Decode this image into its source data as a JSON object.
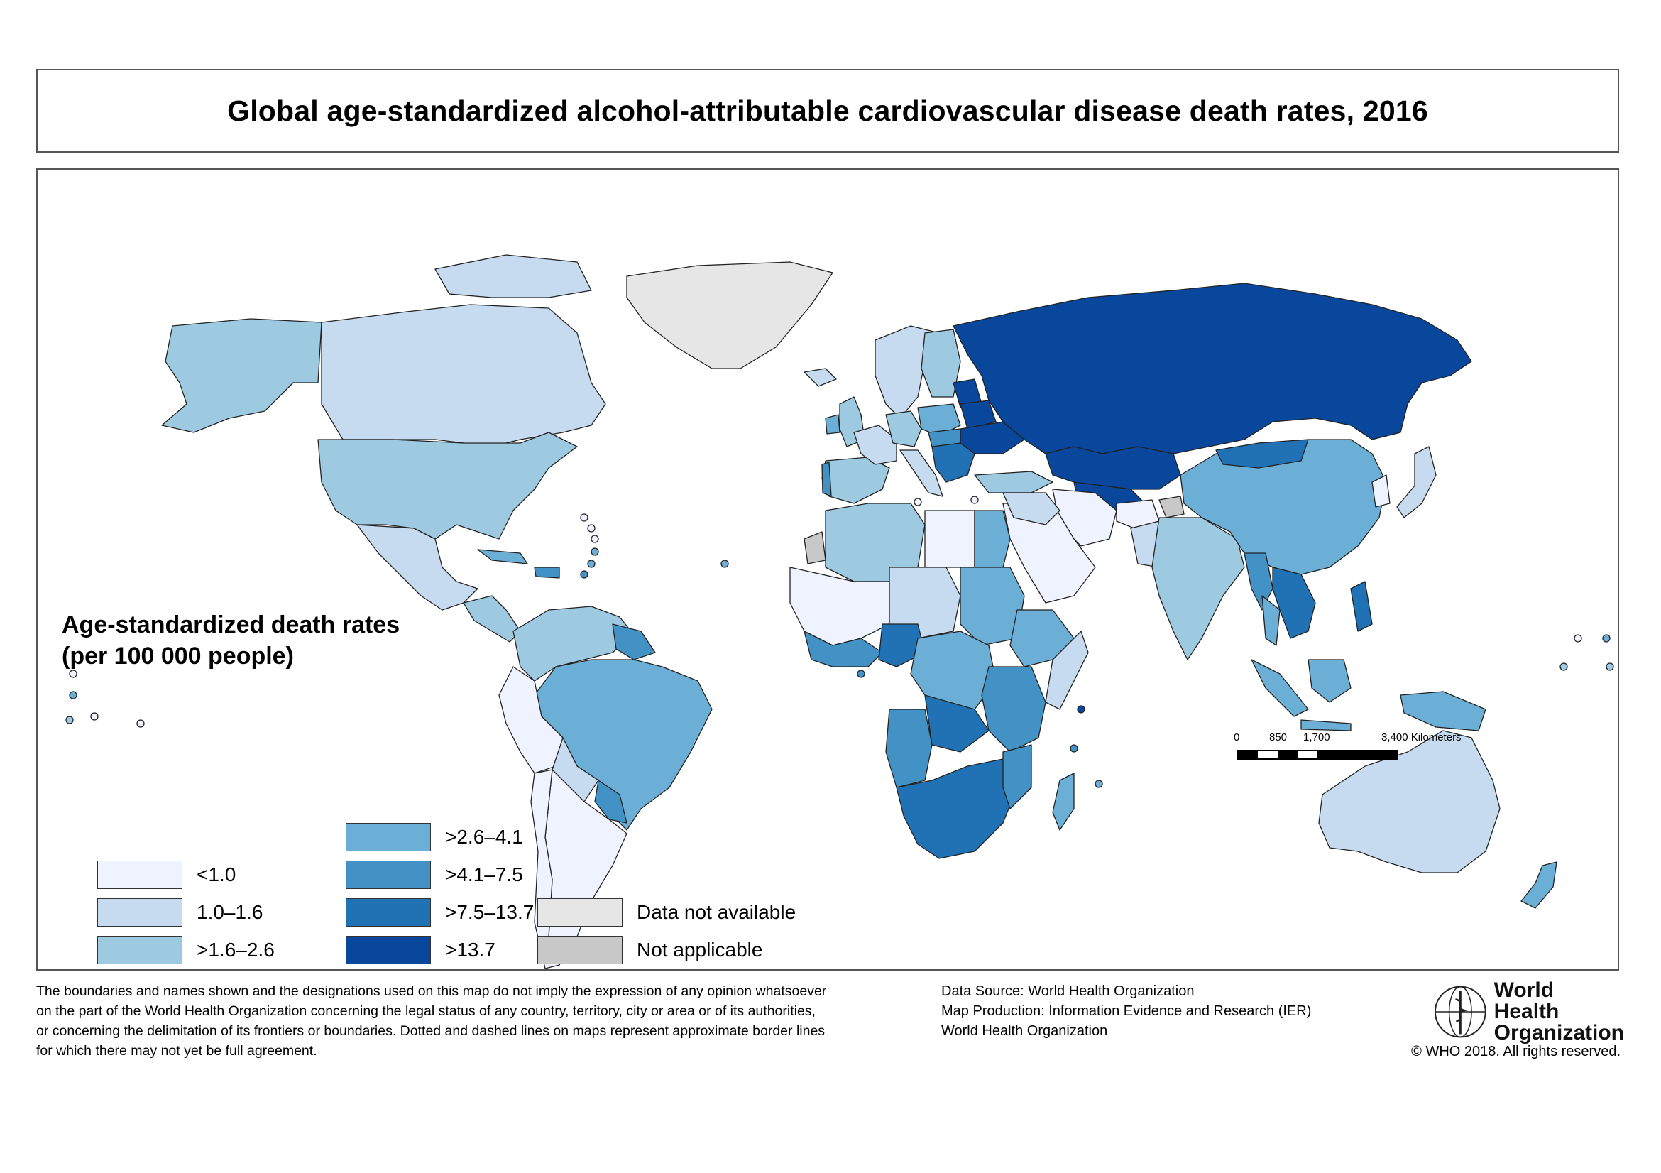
{
  "title": "Global age-standardized alcohol-attributable cardiovascular disease death rates, 2016",
  "legend": {
    "title_line1": "Age-standardized death rates",
    "title_line2": "(per 100 000 people)",
    "classes": [
      {
        "label": "<1.0",
        "color": "#eff3ff"
      },
      {
        "label": "1.0–1.6",
        "color": "#c6dbef"
      },
      {
        "label": ">1.6–2.6",
        "color": "#9ecae1"
      },
      {
        "label": ">2.6–4.1",
        "color": "#6baed6"
      },
      {
        "label": ">4.1–7.5",
        "color": "#4292c6"
      },
      {
        "label": ">7.5–13.7",
        "color": "#2171b5"
      },
      {
        "label": ">13.7",
        "color": "#08479c"
      }
    ],
    "no_data": {
      "label": "Data not available",
      "color": "#e6e6e6"
    },
    "not_applicable": {
      "label": "Not applicable",
      "color": "#c8c8c8"
    }
  },
  "scale": {
    "labels": [
      "0",
      "850",
      "1,700",
      "3,400 Kilometers"
    ]
  },
  "disclaimer": [
    "The boundaries and names shown and the designations used on this map do not imply the expression of any opinion whatsoever",
    "on the part of the World Health Organization concerning the legal status of any country, territory, city or area or of its authorities,",
    "or concerning the delimitation of its frontiers or boundaries. Dotted and dashed lines on maps represent approximate border lines",
    "for which there may not yet be full agreement."
  ],
  "credits": [
    "Data Source: World Health Organization",
    "Map Production: Information Evidence and Research (IER)",
    "World Health Organization"
  ],
  "logo": {
    "line1": "World Health",
    "line2": "Organization"
  },
  "copyright": "© WHO 2018. All rights reserved."
}
